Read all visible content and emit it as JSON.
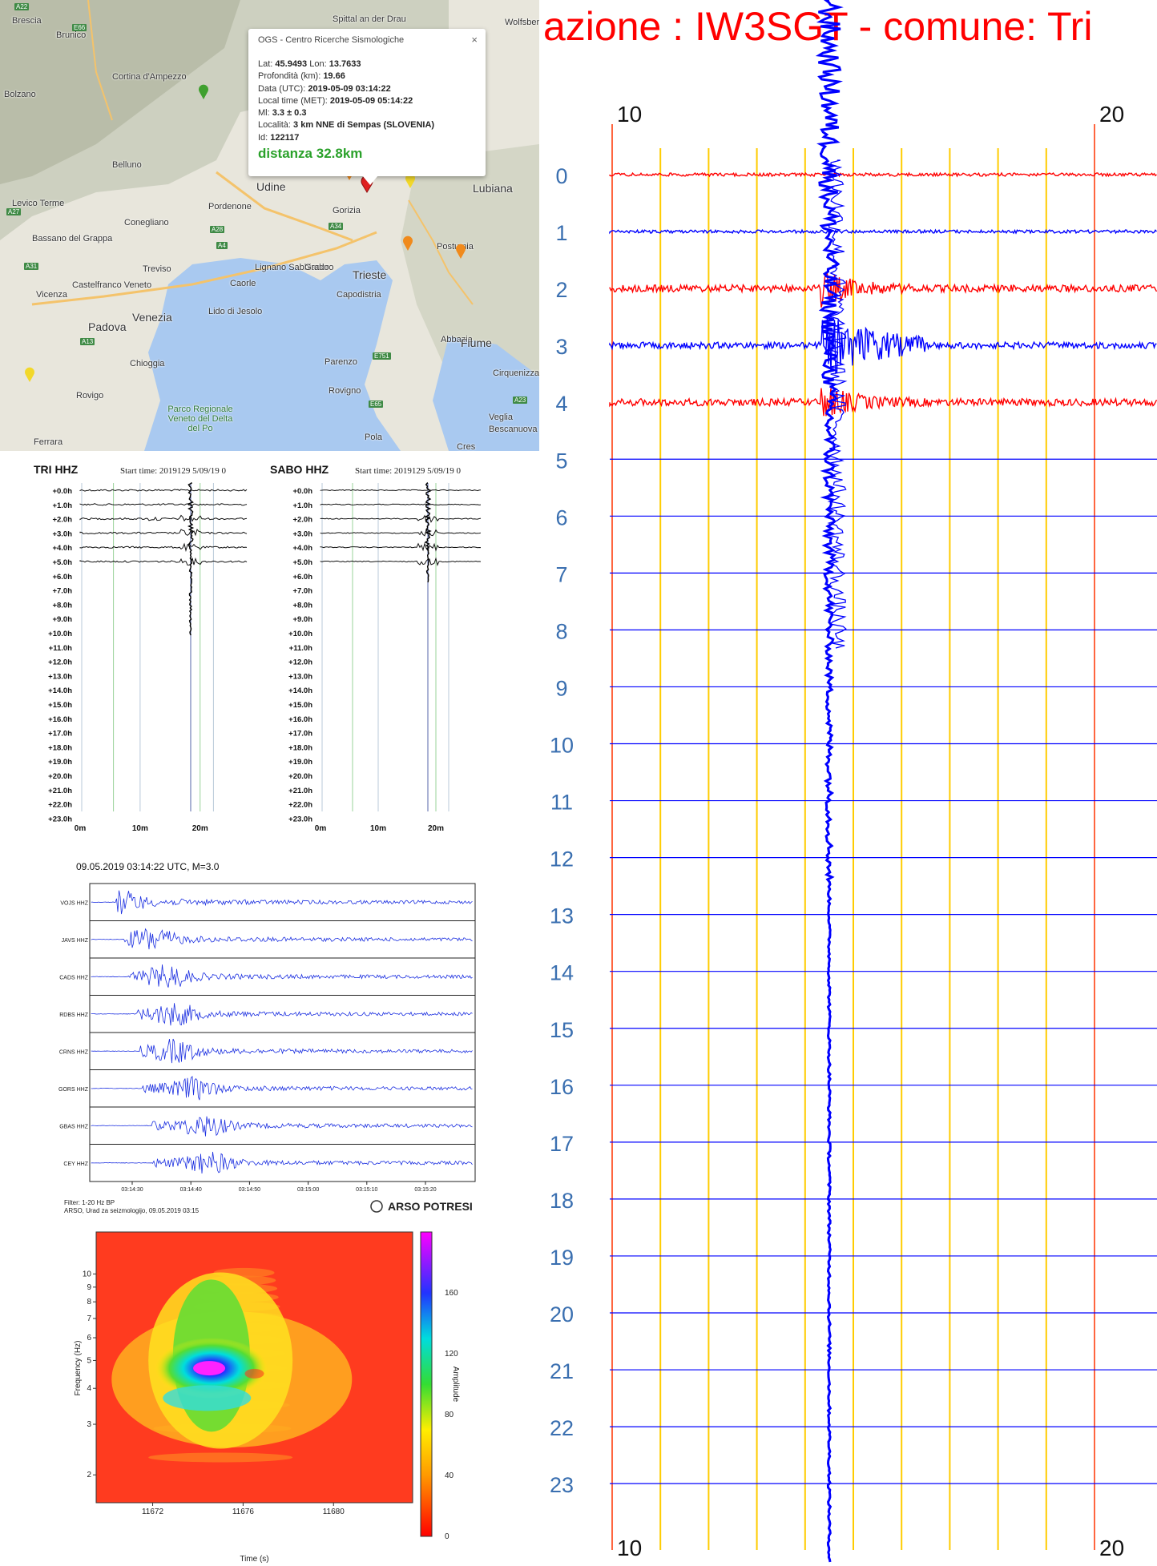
{
  "map": {
    "places": [
      {
        "name": "Brunico"
      },
      {
        "name": "Cortina d'Ampezzo"
      },
      {
        "name": "Belluno"
      },
      {
        "name": "Pordenone"
      },
      {
        "name": "Conegliano"
      },
      {
        "name": "Udine"
      },
      {
        "name": "Gorizia"
      },
      {
        "name": "Lubiana"
      },
      {
        "name": "Treviso"
      },
      {
        "name": "Bassano del Grappa"
      },
      {
        "name": "Castelfranco Veneto"
      },
      {
        "name": "Vicenza"
      },
      {
        "name": "Padova"
      },
      {
        "name": "Venezia"
      },
      {
        "name": "Chioggia"
      },
      {
        "name": "Rovigo"
      },
      {
        "name": "Ferrara"
      },
      {
        "name": "Trieste"
      },
      {
        "name": "Capodistria"
      },
      {
        "name": "Postumia"
      },
      {
        "name": "Abbazia"
      },
      {
        "name": "Fiume"
      },
      {
        "name": "Parenzo"
      },
      {
        "name": "Rovigno"
      },
      {
        "name": "Pola"
      },
      {
        "name": "Cres"
      },
      {
        "name": "Caorle"
      },
      {
        "name": "Lido di Jesolo"
      },
      {
        "name": "Lignano Sabbiadoro"
      },
      {
        "name": "Grado"
      },
      {
        "name": "Parco Regionale Veneto del Delta del Po"
      },
      {
        "name": "Levico Terme"
      },
      {
        "name": "Bolzano"
      },
      {
        "name": "Spittal an der Drau"
      },
      {
        "name": "Wolfsberg"
      },
      {
        "name": "Cirquenizza"
      },
      {
        "name": "Veglia"
      },
      {
        "name": "Bescanuova"
      },
      {
        "name": "Brescia"
      }
    ],
    "road_labels": [
      "A22",
      "E66",
      "A27",
      "A28",
      "A4",
      "A34",
      "A31",
      "A13",
      "E751",
      "E65",
      "A23"
    ],
    "popup": {
      "title": "OGS - Centro Ricerche Sismologiche",
      "close": "×",
      "rows": [
        {
          "label": "Lat: ",
          "value": "45.9493",
          "label2": " Lon: ",
          "value2": "13.7633"
        },
        {
          "label": "Profondità (km): ",
          "value": "19.66"
        },
        {
          "label": "Data (UTC): ",
          "value": "2019-05-09 03:14:22"
        },
        {
          "label": "Local time (MET): ",
          "value": "2019-05-09 05:14:22"
        },
        {
          "label": "Ml: ",
          "value": "3.3 ± 0.3"
        },
        {
          "label": "Località: ",
          "value": "3 km NNE di Sempas (SLOVENIA)"
        },
        {
          "label": "Id: ",
          "value": "122117"
        }
      ],
      "distance": "distanza 32.8km"
    }
  },
  "helicorder": {
    "panels": [
      {
        "station": "TRI HHZ",
        "start": "Start time: 2019129   5/09/19 0",
        "x_ticks": [
          "0m",
          "10m",
          "20m"
        ],
        "active_rows": 6
      },
      {
        "station": "SABO HHZ",
        "start": "Start time: 2019129   5/09/19 0",
        "x_ticks": [
          "0m",
          "10m",
          "20m"
        ],
        "active_rows": 6
      }
    ],
    "hour_labels": [
      "+0.0h",
      "+1.0h",
      "+2.0h",
      "+3.0h",
      "+4.0h",
      "+5.0h",
      "+6.0h",
      "+7.0h",
      "+8.0h",
      "+9.0h",
      "+10.0h",
      "+11.0h",
      "+12.0h",
      "+13.0h",
      "+14.0h",
      "+15.0h",
      "+16.0h",
      "+17.0h",
      "+18.0h",
      "+19.0h",
      "+20.0h",
      "+21.0h",
      "+22.0h",
      "+23.0h"
    ]
  },
  "arso": {
    "title": "09.05.2019  03:14:22 UTC, M=3.0",
    "stations": [
      "VOJS HHZ",
      "JAVS HHZ",
      "CADS HHZ",
      "RDBS HHZ",
      "CRNS HHZ",
      "GORS HHZ",
      "GBAS HHZ",
      "CEY HHZ"
    ],
    "time_ticks": [
      "03:14:30",
      "03:14:40",
      "03:14:50",
      "03:15:00",
      "03:15:10",
      "03:15:20"
    ],
    "filter": "Filter: 1-20 Hz BP",
    "credit": "ARSO, Urad za seizmologijo, 09.05.2019  03:15",
    "logo": "ARSO POTRESI"
  },
  "chart_data": [
    {
      "type": "heatmap",
      "xlabel": "Time (s)",
      "ylabel": "Frequency (Hz)",
      "colorbar_label": "Amplitude",
      "x_ticks": [
        11672,
        11676,
        11680
      ],
      "y_ticks": [
        2,
        3,
        4,
        5,
        6,
        7,
        8,
        9,
        10
      ],
      "y_scale": "log",
      "colorbar_ticks": [
        0,
        40,
        80,
        120,
        160
      ],
      "xlim": [
        11669.5,
        11683.5
      ],
      "ylim": [
        1.6,
        14
      ],
      "peak": {
        "time": 11674.5,
        "frequency": 4.7,
        "amplitude": 180
      }
    },
    {
      "type": "line",
      "title": "azione : IW3SGT - comune: Tri",
      "x_scale_labels": [
        "10",
        "20"
      ],
      "y_labels": [
        "0",
        "1",
        "2",
        "3",
        "4",
        "5",
        "6",
        "7",
        "8",
        "9",
        "10",
        "11",
        "12",
        "13",
        "14",
        "15",
        "16",
        "17",
        "18",
        "19",
        "20",
        "21",
        "22",
        "23"
      ],
      "recorded_traces": [
        {
          "row": 0,
          "color": "#ff0000"
        },
        {
          "row": 1,
          "color": "#0000ff"
        },
        {
          "row": 2,
          "color": "#ff0000"
        },
        {
          "row": 3,
          "color": "#0000ff"
        },
        {
          "row": 4,
          "color": "#ff0000"
        }
      ],
      "event_minute": 14.5
    }
  ],
  "colors": {
    "red": "#ff0000",
    "blue": "#0000ff",
    "yellow": "#ffcc00",
    "label_blue": "#3a6fb0",
    "popup_green": "#2aa12a",
    "wave_blue": "#2233dd"
  }
}
